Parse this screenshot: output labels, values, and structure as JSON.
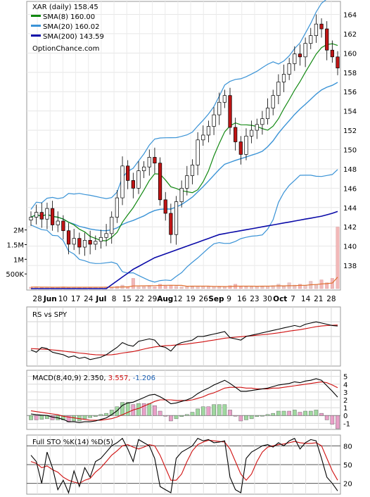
{
  "chart_data": [
    {
      "type": "candlestick",
      "title": "XAR (daily) 158.45",
      "watermark": "OptionChance.com",
      "ylim": [
        135.6,
        165.2
      ],
      "y_ticks": [
        "164",
        "162",
        "160",
        "158",
        "156",
        "154",
        "152",
        "150",
        "148",
        "146",
        "144",
        "142",
        "140",
        "138"
      ],
      "volume_ticks": [
        "2M",
        "1.5M",
        "1M",
        "500K"
      ],
      "x_labels": [
        "28",
        "Jun",
        "10",
        "17",
        "24",
        "Jul",
        "8",
        "15",
        "22",
        "29",
        "Aug",
        "12",
        "19",
        "26",
        "Sep",
        "9",
        "16",
        "23",
        "30",
        "Oct",
        "7",
        "14",
        "21",
        "28"
      ],
      "legend": [
        {
          "label": "SMA(8) 160.00",
          "color": "#118811"
        },
        {
          "label": "SMA(20) 160.02",
          "color": "#3a93d6"
        },
        {
          "label": "SMA(200) 143.59",
          "color": "#0a0aa8"
        }
      ],
      "colors": {
        "up": "#ffffff",
        "down": "#c01414",
        "up_volume": "#8fd08f",
        "sma8": "#118811",
        "sma20": "#3a93d6",
        "sma200": "#0a0aa8",
        "bollinger": "#3a93d6",
        "bollinger_low": "#d8d800",
        "volume": "#f0b0b0",
        "volume_ma": "#e07030"
      },
      "close": [
        143.0,
        143.5,
        142.8,
        143.9,
        142.2,
        142.6,
        141.6,
        140.2,
        140.8,
        139.9,
        140.6,
        140.2,
        140.5,
        140.9,
        141.3,
        143.0,
        145.0,
        148.3,
        146.8,
        146.0,
        147.8,
        148.2,
        149.2,
        148.6,
        144.8,
        143.4,
        141.2,
        144.6,
        146.0,
        147.3,
        148.4,
        151.0,
        151.5,
        152.4,
        153.6,
        154.9,
        155.6,
        152.3,
        150.8,
        149.5,
        151.4,
        152.0,
        152.6,
        153.2,
        154.3,
        155.6,
        157.0,
        157.8,
        158.9,
        159.9,
        159.6,
        161.0,
        161.8,
        163.0,
        162.5,
        160.3,
        159.6,
        158.45
      ],
      "sma200": [
        135.6,
        135.6,
        135.6,
        135.6,
        135.6,
        135.6,
        135.6,
        135.6,
        135.6,
        135.6,
        135.6,
        135.6,
        135.6,
        135.6,
        135.6,
        136.0,
        136.4,
        136.8,
        137.2,
        137.6,
        137.9,
        138.2,
        138.5,
        138.8,
        139.0,
        139.2,
        139.4,
        139.6,
        139.8,
        140.0,
        140.2,
        140.4,
        140.6,
        140.8,
        141.0,
        141.2,
        141.3,
        141.4,
        141.5,
        141.6,
        141.7,
        141.8,
        141.9,
        142.0,
        142.1,
        142.2,
        142.3,
        142.4,
        142.5,
        142.6,
        142.7,
        142.8,
        142.9,
        143.0,
        143.1,
        143.25,
        143.4,
        143.59
      ],
      "volume": [
        0.05,
        0.06,
        0.04,
        0.05,
        0.04,
        0.05,
        0.06,
        0.04,
        0.05,
        0.05,
        0.04,
        0.05,
        0.04,
        0.05,
        0.06,
        0.05,
        0.08,
        0.12,
        0.07,
        0.35,
        0.06,
        0.07,
        0.08,
        0.06,
        0.15,
        0.09,
        0.1,
        0.08,
        0.06,
        0.07,
        0.07,
        0.08,
        0.09,
        0.06,
        0.07,
        0.06,
        0.08,
        0.1,
        0.15,
        0.09,
        0.07,
        0.06,
        0.08,
        0.07,
        0.09,
        0.1,
        0.15,
        0.08,
        0.2,
        0.12,
        0.15,
        0.1,
        0.25,
        0.15,
        0.3,
        0.2,
        0.35,
        2.1
      ],
      "volume_max": 2400000
    },
    {
      "type": "line",
      "title": "RS vs SPY",
      "series": [
        {
          "name": "RS",
          "values": [
            0.4,
            0.3,
            0.5,
            0.45,
            0.3,
            0.25,
            0.2,
            0.1,
            0.15,
            0.05,
            0.1,
            0.0,
            0.05,
            0.1,
            0.2,
            0.35,
            0.5,
            0.7,
            0.6,
            0.55,
            0.75,
            0.8,
            0.85,
            0.8,
            0.55,
            0.5,
            0.35,
            0.6,
            0.7,
            0.75,
            0.8,
            0.95,
            0.95,
            1.0,
            1.05,
            1.1,
            1.15,
            0.9,
            0.85,
            0.8,
            0.95,
            1.0,
            1.05,
            1.1,
            1.15,
            1.2,
            1.25,
            1.3,
            1.35,
            1.4,
            1.35,
            1.45,
            1.5,
            1.55,
            1.5,
            1.45,
            1.4,
            1.38
          ]
        },
        {
          "name": "RS MA",
          "values": [
            0.45,
            0.44,
            0.43,
            0.42,
            0.4,
            0.38,
            0.35,
            0.32,
            0.3,
            0.27,
            0.25,
            0.22,
            0.2,
            0.19,
            0.19,
            0.2,
            0.23,
            0.27,
            0.3,
            0.33,
            0.38,
            0.43,
            0.48,
            0.52,
            0.55,
            0.57,
            0.58,
            0.6,
            0.62,
            0.64,
            0.67,
            0.7,
            0.73,
            0.77,
            0.8,
            0.84,
            0.88,
            0.9,
            0.92,
            0.94,
            0.96,
            0.98,
            1.0,
            1.02,
            1.04,
            1.07,
            1.1,
            1.13,
            1.17,
            1.2,
            1.23,
            1.27,
            1.31,
            1.35,
            1.38,
            1.4,
            1.41,
            1.42
          ]
        }
      ],
      "colors": [
        "#000000",
        "#d01010"
      ]
    },
    {
      "type": "macd",
      "title": "MACD(8,40,9)",
      "values_text": [
        "2.350,",
        "3.557,",
        "-1.206"
      ],
      "value_colors": [
        "#000000",
        "#d01010",
        "#1a5fb4"
      ],
      "y_ticks": [
        "5",
        "4",
        "3",
        "2",
        "1",
        "0",
        "-1"
      ],
      "ylim": [
        -1.6,
        5.6
      ],
      "macd": [
        0.2,
        0.1,
        0.05,
        0.0,
        -0.2,
        -0.3,
        -0.5,
        -0.8,
        -0.8,
        -0.9,
        -0.8,
        -0.8,
        -0.7,
        -0.5,
        -0.3,
        0.1,
        0.6,
        1.3,
        1.6,
        1.7,
        2.0,
        2.3,
        2.6,
        2.7,
        2.4,
        2.0,
        1.5,
        1.6,
        1.8,
        2.0,
        2.3,
        2.8,
        3.2,
        3.5,
        3.9,
        4.2,
        4.5,
        4.1,
        3.6,
        3.1,
        3.1,
        3.2,
        3.3,
        3.4,
        3.5,
        3.7,
        3.9,
        4.0,
        4.1,
        4.3,
        4.2,
        4.4,
        4.5,
        4.7,
        4.5,
        3.8,
        3.1,
        2.35
      ],
      "signal": [
        0.6,
        0.5,
        0.4,
        0.3,
        0.2,
        0.1,
        -0.1,
        -0.2,
        -0.3,
        -0.4,
        -0.5,
        -0.6,
        -0.6,
        -0.6,
        -0.5,
        -0.4,
        -0.2,
        0.1,
        0.4,
        0.7,
        0.9,
        1.2,
        1.5,
        1.8,
        2.0,
        2.0,
        2.0,
        1.9,
        1.9,
        1.9,
        2.0,
        2.2,
        2.4,
        2.7,
        2.9,
        3.2,
        3.5,
        3.6,
        3.6,
        3.6,
        3.5,
        3.5,
        3.4,
        3.4,
        3.4,
        3.5,
        3.5,
        3.6,
        3.7,
        3.8,
        3.9,
        4.0,
        4.1,
        4.2,
        4.3,
        4.2,
        3.9,
        3.557
      ]
    },
    {
      "type": "stochastic",
      "title": "Full STO %K(14) %D(5)",
      "y_ticks": [
        "80",
        "50",
        "20"
      ],
      "ylim": [
        5,
        95
      ],
      "k": [
        65,
        55,
        20,
        70,
        45,
        10,
        25,
        5,
        40,
        15,
        45,
        30,
        55,
        60,
        70,
        80,
        85,
        92,
        75,
        55,
        90,
        85,
        80,
        60,
        15,
        10,
        5,
        60,
        70,
        75,
        80,
        92,
        88,
        90,
        85,
        86,
        88,
        30,
        10,
        5,
        60,
        70,
        75,
        80,
        82,
        78,
        85,
        80,
        88,
        92,
        75,
        85,
        90,
        88,
        60,
        30,
        20,
        8
      ],
      "d": [
        55,
        52,
        45,
        48,
        42,
        38,
        30,
        25,
        22,
        20,
        25,
        28,
        38,
        45,
        55,
        65,
        72,
        80,
        82,
        78,
        75,
        78,
        82,
        80,
        65,
        45,
        25,
        25,
        35,
        55,
        72,
        82,
        86,
        89,
        88,
        87,
        86,
        75,
        55,
        35,
        25,
        35,
        55,
        70,
        78,
        80,
        82,
        83,
        85,
        87,
        85,
        84,
        84,
        85,
        80,
        60,
        40,
        25
      ]
    }
  ]
}
